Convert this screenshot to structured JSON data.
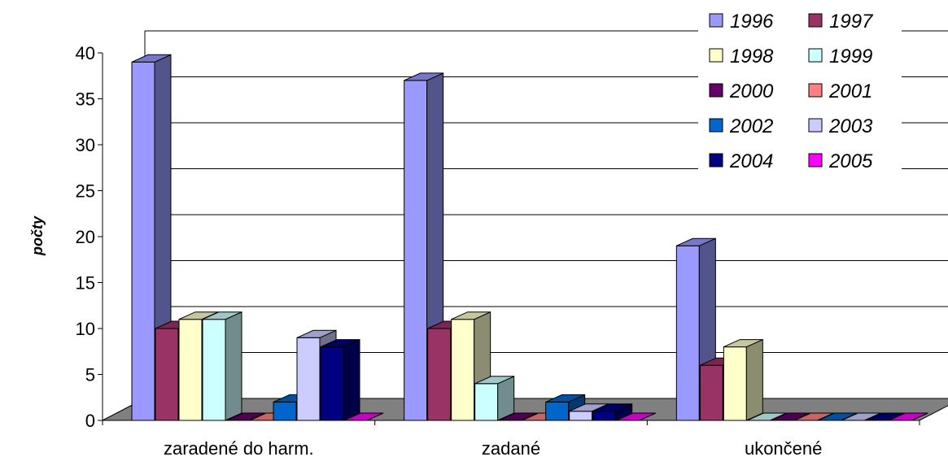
{
  "chart_data": {
    "type": "bar",
    "title": "",
    "xlabel": "",
    "ylabel": "počty",
    "ylim": [
      0,
      40
    ],
    "yticks": [
      0,
      5,
      10,
      15,
      20,
      25,
      30,
      35,
      40
    ],
    "categories": [
      "zaradené do harm.",
      "zadané",
      "ukončené"
    ],
    "legend_position": "top-right",
    "grid": true,
    "three_d": true,
    "series": [
      {
        "name": "1996",
        "color": "#9999ff",
        "values": [
          39,
          37,
          19
        ]
      },
      {
        "name": "1997",
        "color": "#993366",
        "values": [
          10,
          10,
          6
        ]
      },
      {
        "name": "1998",
        "color": "#ffffcc",
        "values": [
          11,
          11,
          8
        ]
      },
      {
        "name": "1999",
        "color": "#ccffff",
        "values": [
          11,
          4,
          0
        ]
      },
      {
        "name": "2000",
        "color": "#660066",
        "values": [
          0,
          0,
          0
        ]
      },
      {
        "name": "2001",
        "color": "#ff8080",
        "values": [
          0,
          0,
          0
        ]
      },
      {
        "name": "2002",
        "color": "#0066cc",
        "values": [
          2,
          2,
          0
        ]
      },
      {
        "name": "2003",
        "color": "#ccccff",
        "values": [
          9,
          1,
          0
        ]
      },
      {
        "name": "2004",
        "color": "#000080",
        "values": [
          8,
          1,
          0
        ]
      },
      {
        "name": "2005",
        "color": "#ff00ff",
        "values": [
          0,
          0,
          0
        ]
      }
    ]
  }
}
